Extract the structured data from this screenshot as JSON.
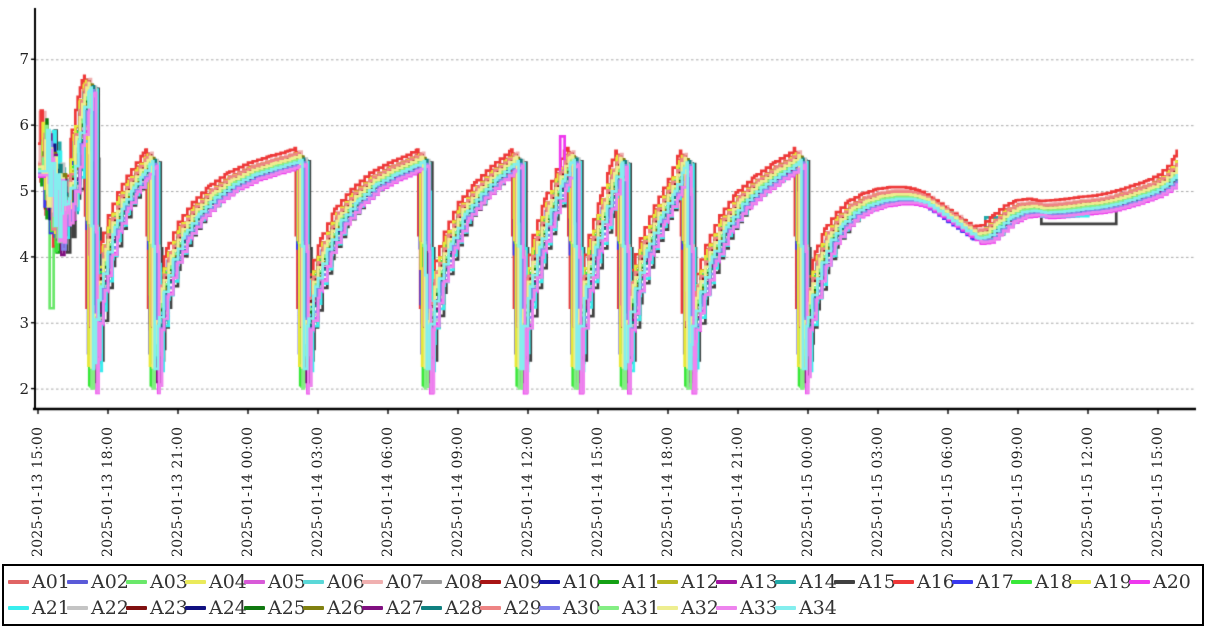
{
  "chart_data": {
    "type": "line",
    "title": "",
    "background": "#ffffff",
    "grid": {
      "style": "horizontal-dashed",
      "color": "#a8a8a8"
    },
    "axis_color": "#000000",
    "tick_text_color": "#222222",
    "legend": {
      "position": "bottom",
      "border_color": "#000000",
      "items_per_row": 20
    },
    "y_axis": {
      "ticks": [
        2,
        3,
        4,
        5,
        6,
        7
      ],
      "range": [
        1.65,
        7.75
      ]
    },
    "x_axis": {
      "rotation": 90,
      "hours_per_tick": 3,
      "range_hours": [
        0,
        48.8
      ],
      "tick_labels": [
        "2025-01-13 15:00",
        "2025-01-13 18:00",
        "2025-01-13 21:00",
        "2025-01-14 00:00",
        "2025-01-14 03:00",
        "2025-01-14 06:00",
        "2025-01-14 09:00",
        "2025-01-14 12:00",
        "2025-01-14 15:00",
        "2025-01-14 18:00",
        "2025-01-14 21:00",
        "2025-01-15 00:00",
        "2025-01-15 03:00",
        "2025-01-15 06:00",
        "2025-01-15 09:00",
        "2025-01-15 12:00",
        "2025-01-15 15:00"
      ]
    },
    "base_curve": [
      [
        0,
        5.35
      ],
      [
        0.12,
        5.85
      ],
      [
        0.22,
        4.85
      ],
      [
        0.33,
        5.55
      ],
      [
        0.45,
        4.6
      ],
      [
        0.55,
        5.25
      ],
      [
        0.65,
        4.3
      ],
      [
        0.78,
        5.0
      ],
      [
        0.9,
        4.65
      ],
      [
        1.05,
        4.75
      ],
      [
        1.2,
        5.1
      ],
      [
        1.45,
        5.8
      ],
      [
        1.7,
        6.3
      ],
      [
        1.88,
        6.55
      ],
      [
        1.98,
        6.62
      ],
      [
        2.02,
        4.5
      ],
      [
        2.08,
        2.15
      ],
      [
        2.2,
        3.1
      ],
      [
        2.4,
        3.6
      ],
      [
        2.7,
        4.1
      ],
      [
        3.0,
        4.5
      ],
      [
        3.4,
        4.85
      ],
      [
        3.8,
        5.1
      ],
      [
        4.2,
        5.3
      ],
      [
        4.5,
        5.45
      ],
      [
        4.62,
        5.5
      ],
      [
        4.66,
        4.2
      ],
      [
        4.72,
        2.15
      ],
      [
        4.85,
        3.0
      ],
      [
        5.1,
        3.5
      ],
      [
        5.5,
        4.0
      ],
      [
        6.0,
        4.4
      ],
      [
        6.6,
        4.7
      ],
      [
        7.3,
        4.95
      ],
      [
        8.1,
        5.15
      ],
      [
        9.0,
        5.3
      ],
      [
        9.9,
        5.4
      ],
      [
        10.7,
        5.48
      ],
      [
        11.0,
        5.52
      ],
      [
        11.05,
        4.2
      ],
      [
        11.12,
        2.15
      ],
      [
        11.25,
        3.0
      ],
      [
        11.6,
        3.6
      ],
      [
        12.1,
        4.15
      ],
      [
        12.7,
        4.6
      ],
      [
        13.4,
        4.9
      ],
      [
        14.2,
        5.15
      ],
      [
        15.0,
        5.3
      ],
      [
        15.8,
        5.42
      ],
      [
        16.25,
        5.5
      ],
      [
        16.3,
        4.2
      ],
      [
        16.38,
        2.15
      ],
      [
        16.5,
        3.0
      ],
      [
        16.9,
        3.7
      ],
      [
        17.4,
        4.25
      ],
      [
        18.0,
        4.7
      ],
      [
        18.7,
        5.0
      ],
      [
        19.4,
        5.25
      ],
      [
        20.0,
        5.42
      ],
      [
        20.28,
        5.5
      ],
      [
        20.33,
        4.2
      ],
      [
        20.4,
        2.15
      ],
      [
        20.52,
        3.0
      ],
      [
        20.8,
        3.6
      ],
      [
        21.2,
        4.2
      ],
      [
        21.7,
        4.75
      ],
      [
        22.2,
        5.2
      ],
      [
        22.55,
        5.48
      ],
      [
        22.68,
        5.52
      ],
      [
        22.73,
        4.2
      ],
      [
        22.8,
        2.15
      ],
      [
        22.92,
        3.0
      ],
      [
        23.2,
        3.6
      ],
      [
        23.6,
        4.2
      ],
      [
        24.1,
        4.8
      ],
      [
        24.5,
        5.25
      ],
      [
        24.75,
        5.48
      ],
      [
        24.8,
        4.2
      ],
      [
        24.87,
        2.15
      ],
      [
        25.0,
        3.0
      ],
      [
        25.3,
        3.55
      ],
      [
        25.8,
        4.15
      ],
      [
        26.4,
        4.65
      ],
      [
        27.0,
        5.05
      ],
      [
        27.4,
        5.4
      ],
      [
        27.52,
        5.48
      ],
      [
        27.56,
        4.2
      ],
      [
        27.63,
        2.15
      ],
      [
        27.76,
        3.0
      ],
      [
        28.1,
        3.5
      ],
      [
        28.6,
        4.05
      ],
      [
        29.2,
        4.5
      ],
      [
        29.9,
        4.85
      ],
      [
        30.7,
        5.1
      ],
      [
        31.5,
        5.3
      ],
      [
        32.2,
        5.45
      ],
      [
        32.4,
        5.52
      ],
      [
        32.44,
        4.2
      ],
      [
        32.5,
        2.15
      ],
      [
        32.64,
        3.0
      ],
      [
        32.9,
        3.45
      ],
      [
        33.3,
        3.95
      ],
      [
        33.7,
        4.3
      ],
      [
        34.2,
        4.55
      ],
      [
        34.7,
        4.72
      ],
      [
        35.3,
        4.83
      ],
      [
        35.9,
        4.9
      ],
      [
        36.5,
        4.93
      ],
      [
        37.1,
        4.93
      ],
      [
        37.7,
        4.88
      ],
      [
        38.3,
        4.75
      ],
      [
        38.9,
        4.6
      ],
      [
        39.5,
        4.45
      ],
      [
        40.0,
        4.33
      ],
      [
        40.4,
        4.35
      ],
      [
        40.9,
        4.5
      ],
      [
        41.4,
        4.65
      ],
      [
        41.9,
        4.73
      ],
      [
        42.4,
        4.75
      ],
      [
        42.9,
        4.72
      ],
      [
        43.4,
        4.73
      ],
      [
        44.0,
        4.75
      ],
      [
        44.6,
        4.78
      ],
      [
        45.2,
        4.8
      ],
      [
        45.8,
        4.84
      ],
      [
        46.4,
        4.9
      ],
      [
        47.0,
        4.97
      ],
      [
        47.5,
        5.03
      ],
      [
        48.0,
        5.12
      ],
      [
        48.4,
        5.25
      ],
      [
        48.7,
        5.4
      ],
      [
        48.8,
        5.5
      ]
    ],
    "series_variation": {
      "head_noise_amp": 0.55,
      "head_hours": 1.15,
      "step_hours": 0.2,
      "base_trough": 2.15
    },
    "series": [
      {
        "name": "A01",
        "color": "#e06464",
        "lag_min": 6,
        "dy": 0.07,
        "trough": 3.0
      },
      {
        "name": "A02",
        "color": "#5a5ad8",
        "lag_min": 18,
        "dy": -0.05,
        "trough": 2.65
      },
      {
        "name": "A03",
        "color": "#6ae86a",
        "lag_min": 10,
        "dy": 0.01,
        "trough": 2.02
      },
      {
        "name": "A04",
        "color": "#eaea5a",
        "lag_min": 9,
        "dy": 0.03,
        "trough": 2.3
      },
      {
        "name": "A05",
        "color": "#d85ad8",
        "lag_min": 16,
        "dy": -0.07,
        "trough": 2.1
      },
      {
        "name": "A06",
        "color": "#5ad8d8",
        "lag_min": 13,
        "dy": -0.02,
        "trough": 2.3
      },
      {
        "name": "A07",
        "color": "#f0b0b0",
        "lag_min": 15,
        "dy": 0.08,
        "trough": 2.9
      },
      {
        "name": "A08",
        "color": "#9a9a9a",
        "lag_min": 20,
        "dy": -0.01,
        "trough": 2.5
      },
      {
        "name": "A09",
        "color": "#a81414",
        "lag_min": 5,
        "dy": 0.05,
        "trough": 2.95
      },
      {
        "name": "A10",
        "color": "#1414a8",
        "lag_min": 22,
        "dy": -0.03,
        "trough": 2.55
      },
      {
        "name": "A11",
        "color": "#14a014",
        "lag_min": 9,
        "dy": 0.0,
        "trough": 2.25
      },
      {
        "name": "A12",
        "color": "#b8b820",
        "lag_min": 8,
        "dy": 0.02,
        "trough": 2.35
      },
      {
        "name": "A13",
        "color": "#a014a0",
        "lag_min": 13,
        "dy": -0.04,
        "trough": 2.15
      },
      {
        "name": "A14",
        "color": "#20a8a8",
        "lag_min": 30,
        "dy": -0.06,
        "trough": 2.45
      },
      {
        "name": "A15",
        "color": "#404040",
        "lag_min": 36,
        "dy": -0.07,
        "trough": 2.5
      },
      {
        "name": "A16",
        "color": "#ee3838",
        "lag_min": 0,
        "dy": 0.13,
        "trough": 3.1
      },
      {
        "name": "A17",
        "color": "#3838ee",
        "lag_min": 4,
        "dy": -0.06,
        "trough": 2.6
      },
      {
        "name": "A18",
        "color": "#38e838",
        "lag_min": 7,
        "dy": 0.03,
        "trough": 2.02
      },
      {
        "name": "A19",
        "color": "#e8e838",
        "lag_min": 5,
        "dy": 0.05,
        "trough": 2.3
      },
      {
        "name": "A20",
        "color": "#ee38ee",
        "lag_min": 26,
        "dy": -0.13,
        "trough": 2.05
      },
      {
        "name": "A21",
        "color": "#38eeee",
        "lag_min": 32,
        "dy": -0.08,
        "trough": 2.35
      },
      {
        "name": "A22",
        "color": "#c4c4c4",
        "lag_min": 28,
        "dy": -0.02,
        "trough": 2.5
      },
      {
        "name": "A23",
        "color": "#801010",
        "lag_min": 11,
        "dy": 0.04,
        "trough": 2.9
      },
      {
        "name": "A24",
        "color": "#101080",
        "lag_min": 17,
        "dy": -0.04,
        "trough": 2.55
      },
      {
        "name": "A25",
        "color": "#107810",
        "lag_min": 15,
        "dy": -0.01,
        "trough": 2.4
      },
      {
        "name": "A26",
        "color": "#808010",
        "lag_min": 19,
        "dy": 0.01,
        "trough": 2.4
      },
      {
        "name": "A27",
        "color": "#801080",
        "lag_min": 21,
        "dy": -0.05,
        "trough": 2.15
      },
      {
        "name": "A28",
        "color": "#108080",
        "lag_min": 23,
        "dy": -0.03,
        "trough": 2.5
      },
      {
        "name": "A29",
        "color": "#ee8484",
        "lag_min": 10,
        "dy": 0.06,
        "trough": 2.9
      },
      {
        "name": "A30",
        "color": "#8484ee",
        "lag_min": 24,
        "dy": -0.09,
        "trough": 2.6
      },
      {
        "name": "A31",
        "color": "#84ee84",
        "lag_min": 13,
        "dy": -0.02,
        "trough": 2.02
      },
      {
        "name": "A32",
        "color": "#eeee90",
        "lag_min": 12,
        "dy": 0.02,
        "trough": 2.3
      },
      {
        "name": "A33",
        "color": "#ee84ee",
        "lag_min": 28,
        "dy": -0.11,
        "trough": 2.05
      },
      {
        "name": "A34",
        "color": "#84eeee",
        "lag_min": 17,
        "dy": -0.05,
        "trough": 2.35
      }
    ],
    "overrides": [
      {
        "series": "A20",
        "from": 22.38,
        "to": 22.56,
        "v": 5.83
      },
      {
        "series": "A15",
        "from": 43.0,
        "to": 46.2,
        "v": 4.5
      },
      {
        "series": "A21",
        "from": 43.0,
        "to": 45.0,
        "v": 4.62
      },
      {
        "series": "A14",
        "from": 40.6,
        "to": 42.2,
        "v": 4.6
      },
      {
        "series": "A07",
        "from": 0.08,
        "to": 0.3,
        "v": 6.2
      },
      {
        "series": "A03",
        "from": 0.5,
        "to": 0.66,
        "v": 3.22
      }
    ]
  }
}
